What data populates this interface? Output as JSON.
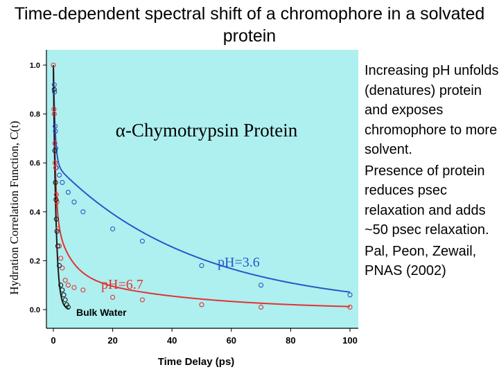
{
  "slide": {
    "title": "Time-dependent spectral shift of a chromophore in a solvated protein",
    "bullets": [
      "Increasing pH unfolds (denatures) protein and exposes chromophore to more solvent.",
      "Presence of protein reduces psec relaxation and adds ~50 psec relaxation.",
      "Pal, Peon, Zewail, PNAS (2002)"
    ]
  },
  "chart_data": {
    "type": "scatter",
    "title": "α-Chymotrypsin Protein",
    "xlabel": "Time Delay (ps)",
    "ylabel": "Hydration Correlation Function, C(t)",
    "xlim": [
      0,
      100
    ],
    "ylim": [
      -0.05,
      1.05
    ],
    "xticks": [
      0,
      20,
      40,
      60,
      80,
      100
    ],
    "yticks": [
      0.0,
      0.2,
      0.4,
      0.6,
      0.8,
      1.0
    ],
    "xtick_labels": [
      "0",
      "20",
      "40",
      "60",
      "80",
      "100"
    ],
    "ytick_labels": [
      "0.0",
      "0.2",
      "0.4",
      "0.6",
      "0.8",
      "1.0"
    ],
    "background": "#aeefef",
    "series": [
      {
        "name": "pH=3.6",
        "label": "pH=3.6",
        "color": "#2a55c8",
        "points": [
          [
            0.3,
            0.92
          ],
          [
            0.4,
            0.89
          ],
          [
            0.6,
            0.75
          ],
          [
            0.7,
            0.73
          ],
          [
            0.8,
            0.66
          ],
          [
            1,
            0.58
          ],
          [
            2,
            0.55
          ],
          [
            3,
            0.52
          ],
          [
            5,
            0.48
          ],
          [
            7,
            0.44
          ],
          [
            10,
            0.4
          ],
          [
            20,
            0.33
          ],
          [
            30,
            0.28
          ],
          [
            50,
            0.18
          ],
          [
            70,
            0.1
          ],
          [
            100,
            0.06
          ]
        ],
        "fit": {
          "a1": 0.4,
          "tau1": 0.6,
          "a2": 0.6,
          "tau2": 47
        }
      },
      {
        "name": "pH=6.7",
        "label": "pH=6.7",
        "color": "#e23232",
        "points": [
          [
            0,
            1.0
          ],
          [
            0.2,
            0.82
          ],
          [
            0.3,
            0.8
          ],
          [
            0.5,
            0.68
          ],
          [
            0.6,
            0.6
          ],
          [
            0.8,
            0.58
          ],
          [
            1,
            0.47
          ],
          [
            1.2,
            0.44
          ],
          [
            1.5,
            0.33
          ],
          [
            2,
            0.26
          ],
          [
            2.5,
            0.21
          ],
          [
            3,
            0.17
          ],
          [
            4,
            0.12
          ],
          [
            5,
            0.1
          ],
          [
            7,
            0.09
          ],
          [
            10,
            0.08
          ],
          [
            20,
            0.05
          ],
          [
            30,
            0.04
          ],
          [
            50,
            0.02
          ],
          [
            70,
            0.01
          ],
          [
            100,
            0.01
          ]
        ],
        "fit": {
          "a1": 0.6,
          "tau1": 0.65,
          "a2": 0.25,
          "tau2": 5,
          "a3": 0.15,
          "tau3": 40
        }
      },
      {
        "name": "Bulk Water",
        "label": "Bulk Water",
        "color": "#1a1a1a",
        "points": [
          [
            0.3,
            0.9
          ],
          [
            0.5,
            0.65
          ],
          [
            0.7,
            0.52
          ],
          [
            0.9,
            0.45
          ],
          [
            1,
            0.37
          ],
          [
            1.2,
            0.32
          ],
          [
            1.5,
            0.26
          ],
          [
            2,
            0.18
          ],
          [
            2.5,
            0.1
          ],
          [
            3,
            0.08
          ],
          [
            3.5,
            0.06
          ],
          [
            4,
            0.04
          ],
          [
            4.5,
            0.02
          ],
          [
            5,
            0.01
          ]
        ],
        "fit": {
          "a1": 1.0,
          "tau1": 0.9
        }
      }
    ]
  }
}
